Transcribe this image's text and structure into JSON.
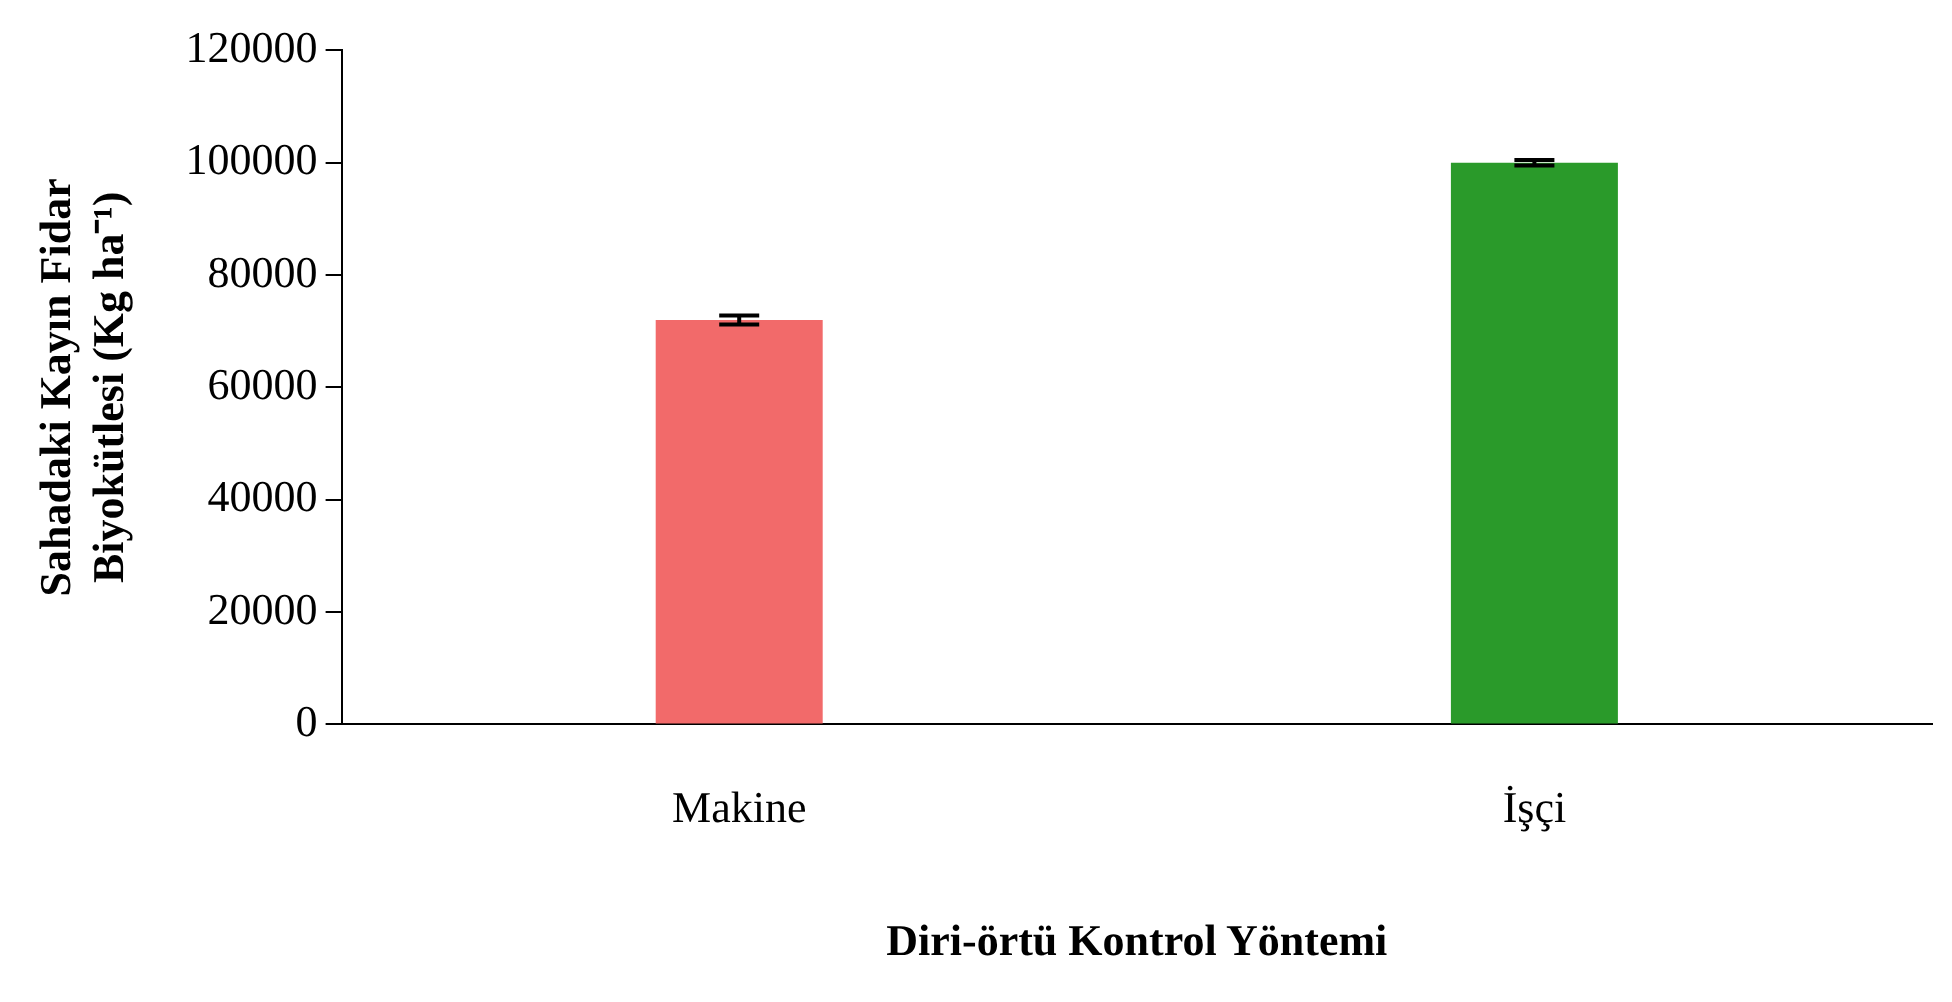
{
  "chart_data": {
    "type": "bar",
    "xlabel": "Diri-örtü Kontrol Yöntemi",
    "ylabel": "Sahadaki Kayın Fidar\nBiyokütlesi (Kg ha⁻¹)",
    "categories": [
      "Makine",
      "İşçi"
    ],
    "series": [
      {
        "values": [
          72000,
          100000
        ],
        "colors": [
          "#f26a6a",
          "#2a9a2a"
        ],
        "errors": [
          800,
          500
        ]
      }
    ],
    "ylim": [
      0,
      120000
    ],
    "yticks": [
      0,
      20000,
      40000,
      60000,
      80000,
      100000,
      120000
    ],
    "grid": false,
    "legend": false
  }
}
